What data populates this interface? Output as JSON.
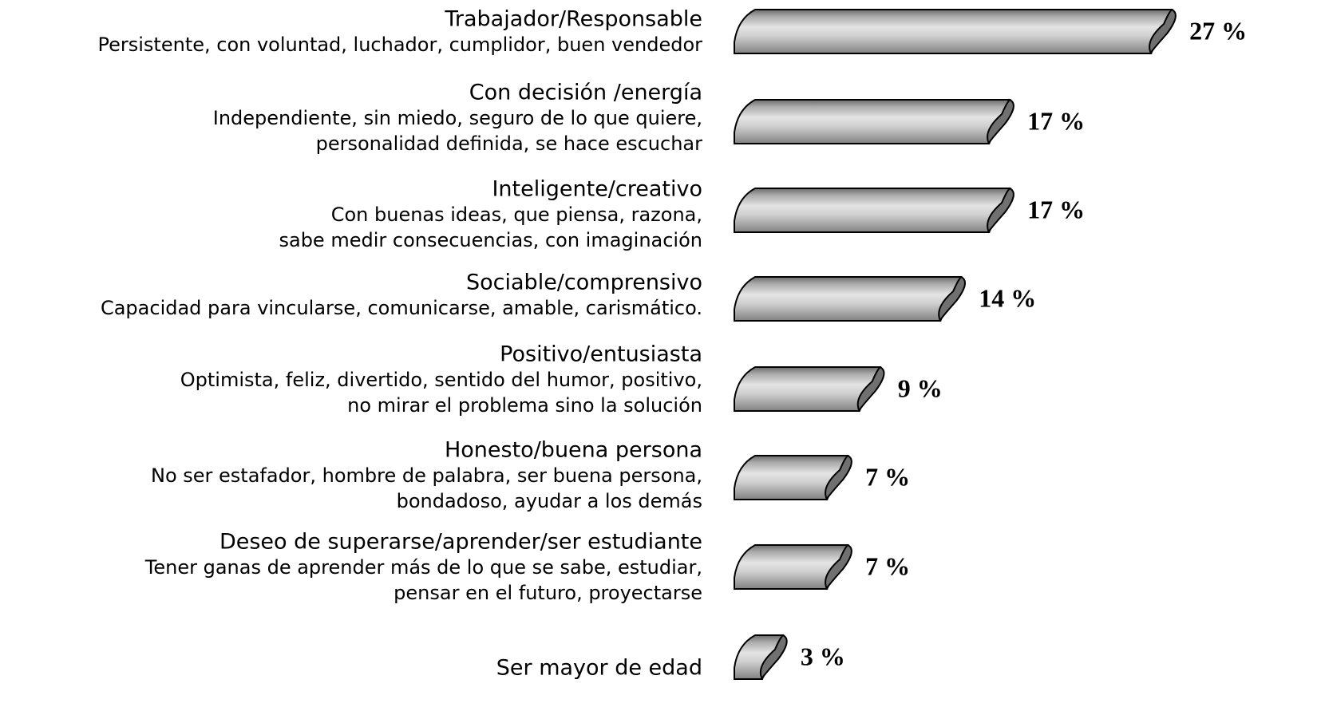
{
  "chart_data": {
    "type": "bar",
    "orientation": "horizontal",
    "categories": [
      "Trabajador/Responsable",
      "Con decisión /energía",
      "Inteligente/creativo",
      "Sociable/comprensivo",
      "Positivo/entusiasta",
      "Honesto/buena persona",
      "Deseo de superarse/aprender/ser estudiante",
      "Ser mayor de edad"
    ],
    "descriptions": [
      [
        "Persistente, con voluntad, luchador, cumplidor, buen vendedor"
      ],
      [
        "Independiente, sin miedo, seguro de lo que quiere,",
        "personalidad definida, se hace escuchar"
      ],
      [
        "Con buenas ideas, que piensa, razona,",
        "sabe medir consecuencias, con imaginación"
      ],
      [
        "Capacidad para vincularse, comunicarse, amable, carismático."
      ],
      [
        "Optimista, feliz, divertido, sentido del humor, positivo,",
        "no mirar el problema sino la solución"
      ],
      [
        "No ser estafador, hombre de palabra, ser buena persona,",
        "bondadoso, ayudar a los demás"
      ],
      [
        "Tener ganas de aprender más de lo que se sabe, estudiar,",
        "pensar en el futuro, proyectarse"
      ],
      []
    ],
    "values": [
      27,
      17,
      17,
      14,
      9,
      7,
      7,
      3
    ],
    "value_labels": [
      "27 %",
      "17 %",
      "17 %",
      "14 %",
      "9 %",
      "7 %",
      "7 %",
      "3 %"
    ],
    "color": "#b0b0b0"
  }
}
